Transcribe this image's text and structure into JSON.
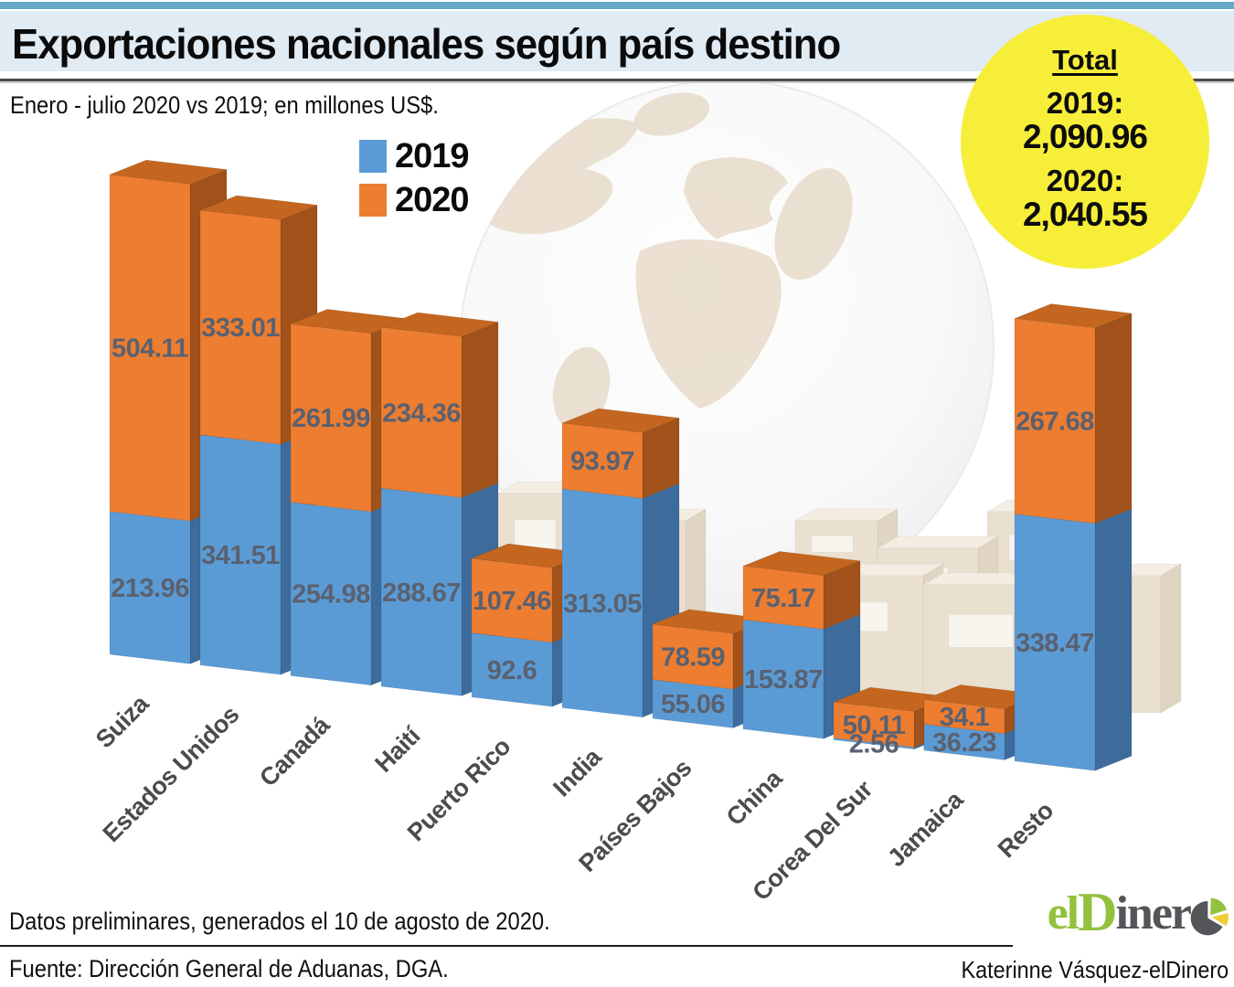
{
  "header": {
    "title": "Exportaciones nacionales según país destino",
    "subtitle": "Enero - julio 2020 vs 2019; en millones US$."
  },
  "total_badge": {
    "title": "Total",
    "items": [
      {
        "label": "2019:",
        "value": "2,090.96"
      },
      {
        "label": "2020:",
        "value": "2,040.55"
      }
    ]
  },
  "legend": {
    "items": [
      {
        "label": "2019",
        "color": "#5B9BD5"
      },
      {
        "label": "2020",
        "color": "#ED7D31"
      }
    ]
  },
  "chart_data": {
    "type": "bar",
    "stacked": true,
    "projection": "3d",
    "unit": "millones US$",
    "title": "Exportaciones nacionales según país destino",
    "categories": [
      "Suiza",
      "Estados Unidos",
      "Canadá",
      "Haití",
      "Puerto Rico",
      "India",
      "Países Bajos",
      "China",
      "Corea Del Sur",
      "Jamaica",
      "Resto"
    ],
    "series": [
      {
        "name": "2019",
        "color": "#5B9BD5",
        "values": [
          213.96,
          341.51,
          254.98,
          288.67,
          92.6,
          313.05,
          55.06,
          153.87,
          2.56,
          36.23,
          338.47
        ]
      },
      {
        "name": "2020",
        "color": "#ED7D31",
        "values": [
          504.11,
          333.01,
          261.99,
          234.36,
          107.46,
          93.97,
          78.59,
          75.17,
          50.11,
          34.1,
          267.68
        ]
      }
    ],
    "totals": [
      {
        "name": "2019",
        "value": 2090.96
      },
      {
        "name": "2020",
        "value": 2040.55
      }
    ],
    "value_labels": true,
    "value_label_color": "#5a6170",
    "category_label_color": "#4b4b4b",
    "legend_position": "top-left-of-plot"
  },
  "footer": {
    "note": "Datos preliminares, generados el 10 de agosto de 2020.",
    "source": "Fuente: Dirección General de Aduanas, DGA.",
    "credit": "Katerinne Vásquez-elDinero"
  },
  "logo": {
    "part1": "el",
    "part2": "D",
    "part3": "iner",
    "pie_gray": "#55565a",
    "pie_green": "#93c13e",
    "pie_yellow": "#f0cf33"
  }
}
